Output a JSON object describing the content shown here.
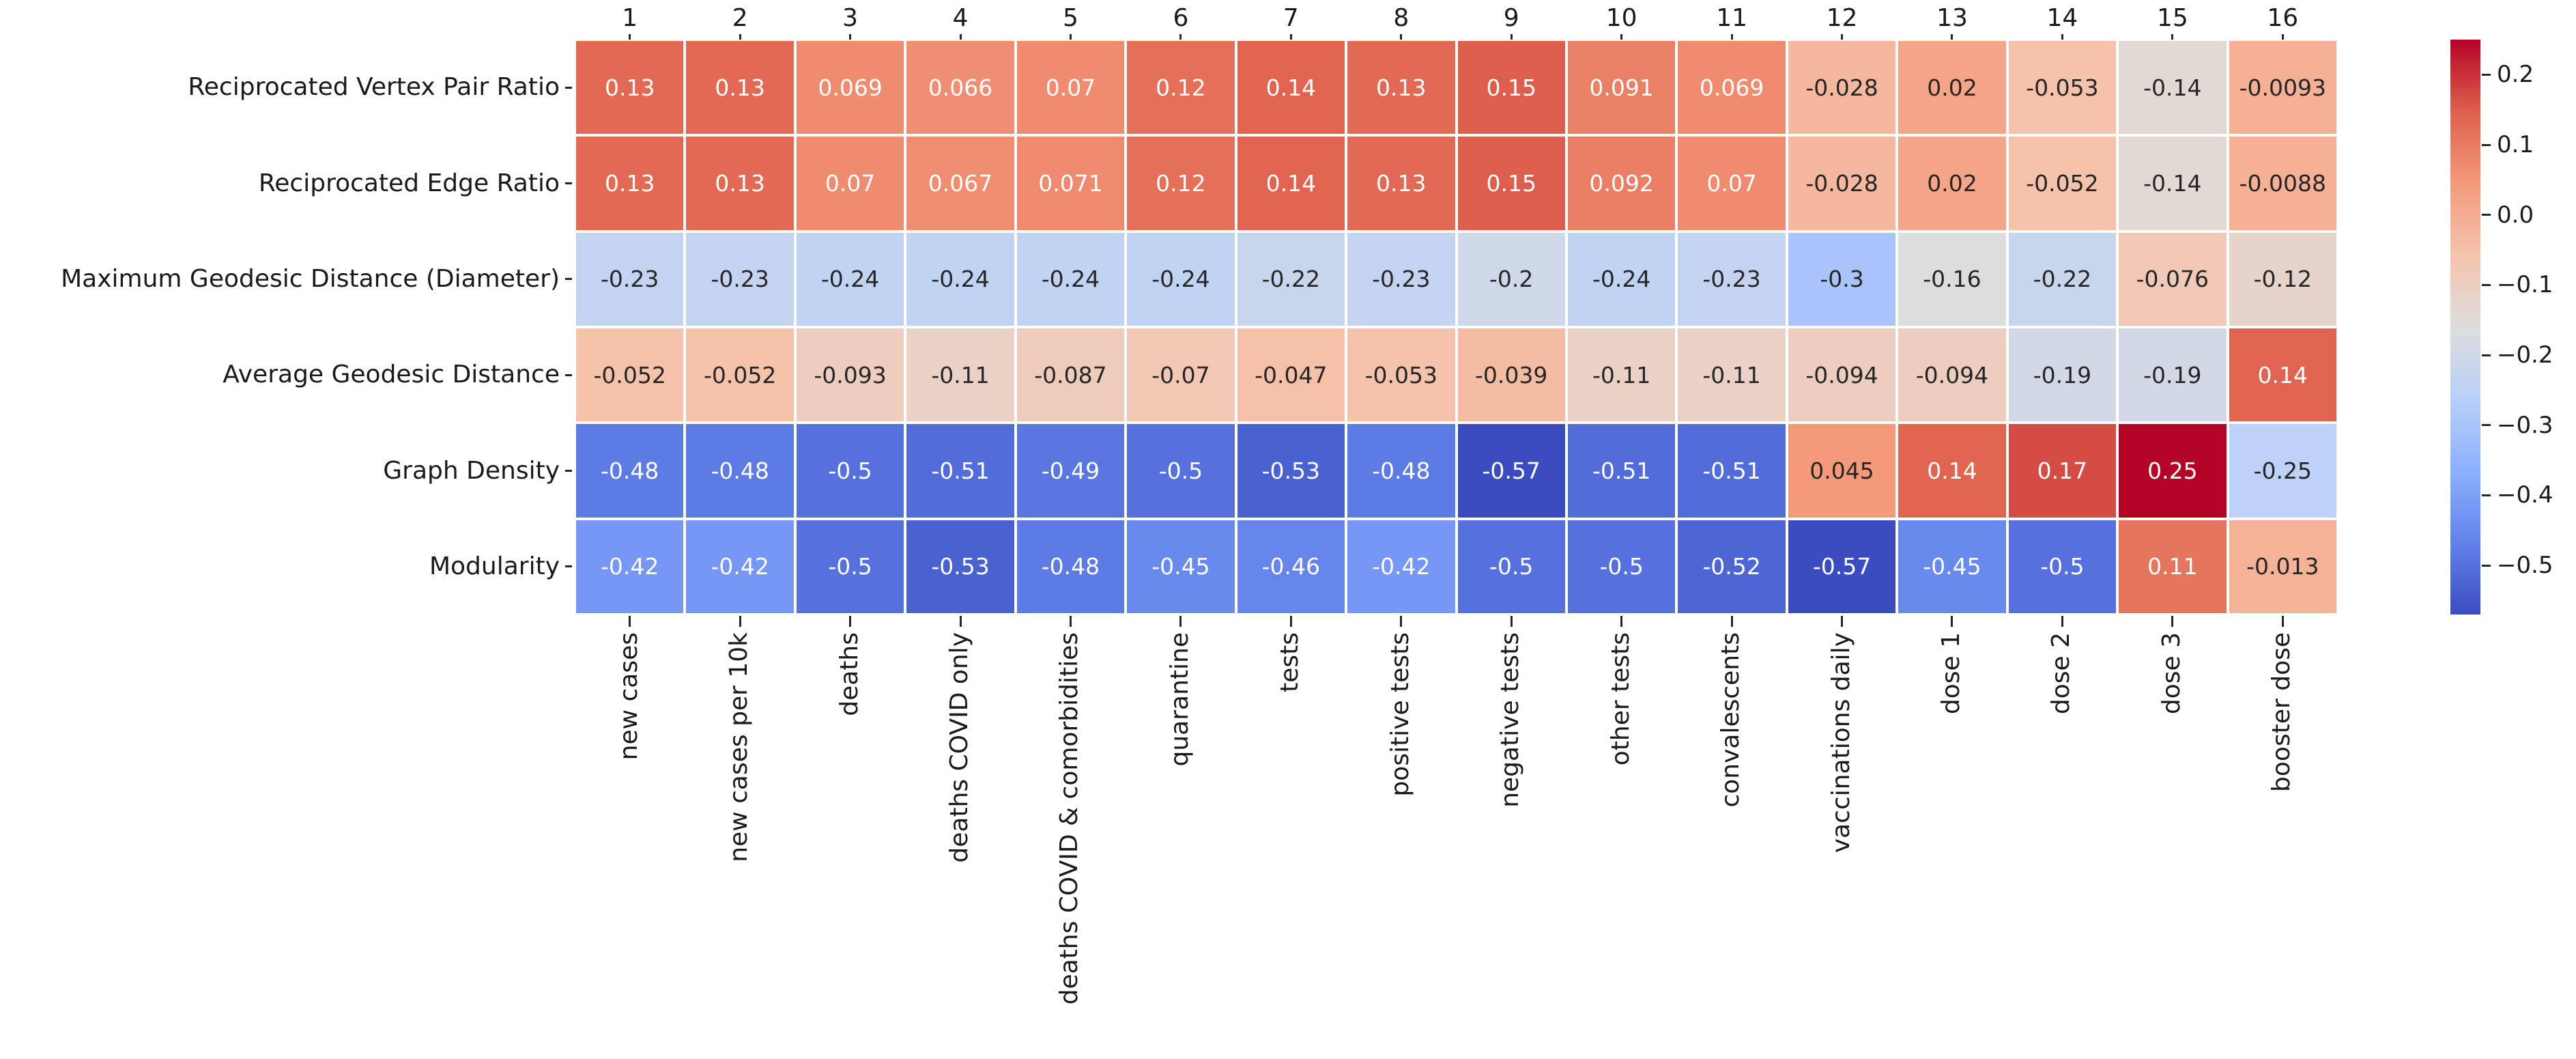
{
  "chart_data": {
    "type": "heatmap",
    "title": "",
    "colormap": "coolwarm",
    "vmin": -0.57,
    "vmax": 0.25,
    "background": "#ffffff",
    "grid_line_color": "#ffffff",
    "axis_text_color": "#1a1a1a",
    "annotation_text_colors": {
      "on_light": "#262626",
      "on_dark": "#ffffff"
    },
    "colormap_colors": [
      "#3b4cc0",
      "#6282ea",
      "#8db0fe",
      "#b8d0f9",
      "#dddddd",
      "#f5c4ad",
      "#f49a7b",
      "#de604d",
      "#b40426"
    ],
    "row_labels": [
      "Reciprocated Vertex Pair Ratio",
      "Reciprocated Edge Ratio",
      "Maximum Geodesic Distance (Diameter)",
      "Average Geodesic Distance",
      "Graph Density",
      "Modularity"
    ],
    "col_numbers": [
      "1",
      "2",
      "3",
      "4",
      "5",
      "6",
      "7",
      "8",
      "9",
      "10",
      "11",
      "12",
      "13",
      "14",
      "15",
      "16"
    ],
    "col_labels": [
      "new cases",
      "new cases per 10k",
      "deaths",
      "deaths COVID only",
      "deaths COVID & comorbidities",
      "quarantine",
      "tests",
      "positive tests",
      "negative tests",
      "other tests",
      "convalescents",
      "vaccinations daily",
      "dose 1",
      "dose 2",
      "dose 3",
      "booster dose"
    ],
    "values": [
      [
        "0.13",
        "0.13",
        "0.069",
        "0.066",
        "0.07",
        "0.12",
        "0.14",
        "0.13",
        "0.15",
        "0.091",
        "0.069",
        "-0.028",
        "0.02",
        "-0.053",
        "-0.14",
        "-0.0093"
      ],
      [
        "0.13",
        "0.13",
        "0.07",
        "0.067",
        "0.071",
        "0.12",
        "0.14",
        "0.13",
        "0.15",
        "0.092",
        "0.07",
        "-0.028",
        "0.02",
        "-0.052",
        "-0.14",
        "-0.0088"
      ],
      [
        "-0.23",
        "-0.23",
        "-0.24",
        "-0.24",
        "-0.24",
        "-0.24",
        "-0.22",
        "-0.23",
        "-0.2",
        "-0.24",
        "-0.23",
        "-0.3",
        "-0.16",
        "-0.22",
        "-0.076",
        "-0.12"
      ],
      [
        "-0.052",
        "-0.052",
        "-0.093",
        "-0.11",
        "-0.087",
        "-0.07",
        "-0.047",
        "-0.053",
        "-0.039",
        "-0.11",
        "-0.11",
        "-0.094",
        "-0.094",
        "-0.19",
        "-0.19",
        "0.14"
      ],
      [
        "-0.48",
        "-0.48",
        "-0.5",
        "-0.51",
        "-0.49",
        "-0.5",
        "-0.53",
        "-0.48",
        "-0.57",
        "-0.51",
        "-0.51",
        "0.045",
        "0.14",
        "0.17",
        "0.25",
        "-0.25"
      ],
      [
        "-0.42",
        "-0.42",
        "-0.5",
        "-0.53",
        "-0.48",
        "-0.45",
        "-0.46",
        "-0.42",
        "-0.5",
        "-0.5",
        "-0.52",
        "-0.57",
        "-0.45",
        "-0.5",
        "0.11",
        "-0.013"
      ]
    ],
    "colorbar": {
      "tick_labels": [
        "0.2",
        "0.1",
        "0.0",
        "−0.1",
        "−0.2",
        "−0.3",
        "−0.4",
        "−0.5"
      ],
      "tick_values": [
        0.2,
        0.1,
        0.0,
        -0.1,
        -0.2,
        -0.3,
        -0.4,
        -0.5
      ],
      "position": "right"
    },
    "legend": null,
    "grid_on": false
  }
}
